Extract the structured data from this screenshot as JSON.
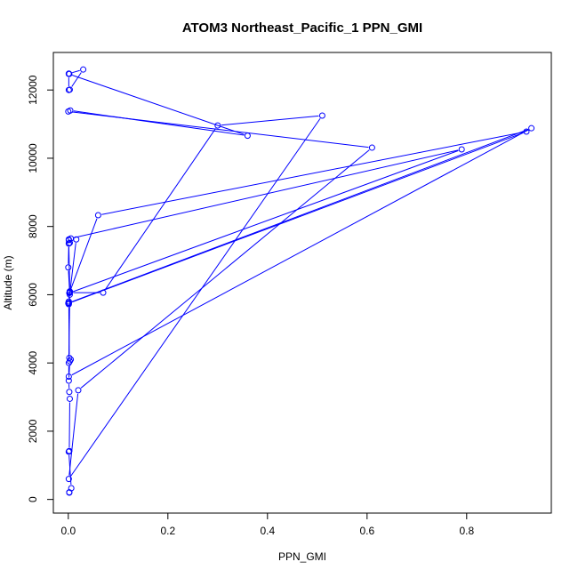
{
  "chart_data": {
    "type": "line",
    "title": "ATOM3 Northeast_Pacific_1 PPN_GMI",
    "xlabel": "PPN_GMI",
    "ylabel": "Altitude (m)",
    "xlim": [
      -0.03,
      0.97
    ],
    "ylim": [
      -400,
      13100
    ],
    "x_ticks": [
      0,
      0.2,
      0.4,
      0.6,
      0.8
    ],
    "x_tick_labels": [
      "0.0",
      "0.2",
      "0.4",
      "0.6",
      "0.8"
    ],
    "y_ticks": [
      0,
      2000,
      4000,
      6000,
      8000,
      10000,
      12000
    ],
    "y_tick_labels": [
      "0",
      "2000",
      "4000",
      "6000",
      "8000",
      "10000",
      "12000"
    ],
    "grid": false,
    "markers": "open-circle",
    "line_color": "#0000ff",
    "series": [
      {
        "x": [
          0.002,
          0.002,
          0.006,
          0.001,
          0.001,
          0.002,
          0.003,
          0.002,
          0.001,
          0.003,
          0.005,
          0.002,
          0.001,
          0.0,
          0.001,
          0.93,
          0.001,
          0.001,
          0.003,
          0.0,
          0.001,
          0.001,
          0.005,
          0.79,
          0.002,
          0.003,
          0.001,
          0.001,
          0.003,
          0.016,
          0.001,
          0.003,
          0.06,
          0.92,
          0.001,
          0.001,
          0.003,
          0.07,
          0.3,
          0.51,
          0.001,
          0.02,
          0.61,
          0.0,
          0.004,
          0.36,
          0.001,
          0.001,
          0.003,
          0.03,
          0.001,
          0.002
        ],
        "y": [
          200,
          210,
          330,
          1400,
          1400,
          1420,
          2950,
          3150,
          3480,
          4050,
          4100,
          4150,
          5720,
          5750,
          5760,
          10880,
          3600,
          4000,
          6000,
          6800,
          7500,
          7600,
          7650,
          10260,
          6050,
          6100,
          7500,
          7620,
          7520,
          7620,
          5800,
          6080,
          8330,
          10780,
          5750,
          5760,
          6060,
          6060,
          10960,
          11250,
          600,
          3200,
          10310,
          11370,
          11400,
          10660,
          12470,
          12000,
          12010,
          12600,
          12480,
          12470
        ]
      }
    ]
  }
}
